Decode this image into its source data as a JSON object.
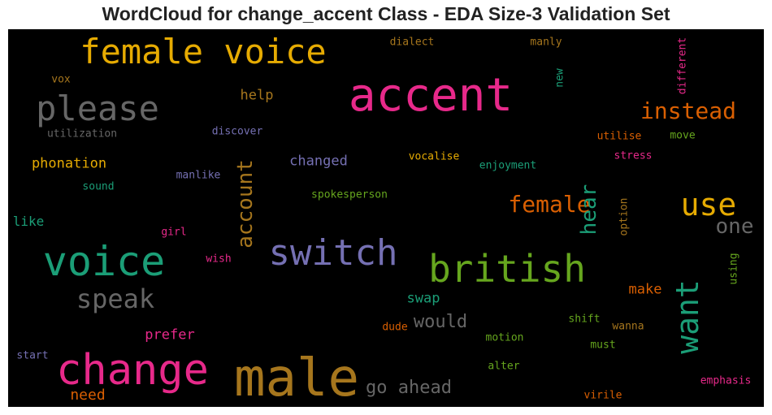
{
  "chart_data": {
    "type": "wordcloud",
    "title": "WordCloud for change_accent Class - EDA Size-3 Validation Set",
    "background": "#000000",
    "words": [
      {
        "text": "accent",
        "color": "#e7298a"
      },
      {
        "text": "male",
        "color": "#a6761d"
      },
      {
        "text": "change",
        "color": "#e7298a"
      },
      {
        "text": "voice",
        "color": "#1b9e77"
      },
      {
        "text": "female voice",
        "color": "#e6ab02"
      },
      {
        "text": "british",
        "color": "#66a61e"
      },
      {
        "text": "switch",
        "color": "#7570b3"
      },
      {
        "text": "please",
        "color": "#666666"
      },
      {
        "text": "use",
        "color": "#e6ab02"
      },
      {
        "text": "want",
        "color": "#1b9e77"
      },
      {
        "text": "instead",
        "color": "#d95f02"
      },
      {
        "text": "account",
        "color": "#a6761d"
      },
      {
        "text": "female",
        "color": "#d95f02"
      },
      {
        "text": "speak",
        "color": "#666666"
      },
      {
        "text": "hear",
        "color": "#1b9e77"
      },
      {
        "text": "one",
        "color": "#666666"
      },
      {
        "text": "go ahead",
        "color": "#666666"
      },
      {
        "text": "would",
        "color": "#666666"
      },
      {
        "text": "phonation",
        "color": "#e6ab02"
      },
      {
        "text": "changed",
        "color": "#7570b3"
      },
      {
        "text": "need",
        "color": "#d95f02"
      },
      {
        "text": "prefer",
        "color": "#e7298a"
      },
      {
        "text": "help",
        "color": "#a6761d"
      },
      {
        "text": "make",
        "color": "#d95f02"
      },
      {
        "text": "swap",
        "color": "#1b9e77"
      },
      {
        "text": "like",
        "color": "#1b9e77"
      },
      {
        "text": "different",
        "color": "#e7298a"
      },
      {
        "text": "dialect",
        "color": "#a6761d"
      },
      {
        "text": "manly",
        "color": "#a6761d"
      },
      {
        "text": "vox",
        "color": "#a6761d"
      },
      {
        "text": "new",
        "color": "#1b9e77"
      },
      {
        "text": "utilization",
        "color": "#666666"
      },
      {
        "text": "discover",
        "color": "#7570b3"
      },
      {
        "text": "utilise",
        "color": "#d95f02"
      },
      {
        "text": "move",
        "color": "#66a61e"
      },
      {
        "text": "stress",
        "color": "#e7298a"
      },
      {
        "text": "vocalise",
        "color": "#e6ab02"
      },
      {
        "text": "enjoyment",
        "color": "#1b9e77"
      },
      {
        "text": "manlike",
        "color": "#7570b3"
      },
      {
        "text": "sound",
        "color": "#1b9e77"
      },
      {
        "text": "spokesperson",
        "color": "#66a61e"
      },
      {
        "text": "option",
        "color": "#a6761d"
      },
      {
        "text": "girl",
        "color": "#e7298a"
      },
      {
        "text": "wish",
        "color": "#e7298a"
      },
      {
        "text": "using",
        "color": "#66a61e"
      },
      {
        "text": "shift",
        "color": "#66a61e"
      },
      {
        "text": "wanna",
        "color": "#a6761d"
      },
      {
        "text": "dude",
        "color": "#d95f02"
      },
      {
        "text": "motion",
        "color": "#66a61e"
      },
      {
        "text": "must",
        "color": "#66a61e"
      },
      {
        "text": "start",
        "color": "#7570b3"
      },
      {
        "text": "alter",
        "color": "#66a61e"
      },
      {
        "text": "emphasis",
        "color": "#e7298a"
      },
      {
        "text": "virile",
        "color": "#d95f02"
      }
    ]
  }
}
